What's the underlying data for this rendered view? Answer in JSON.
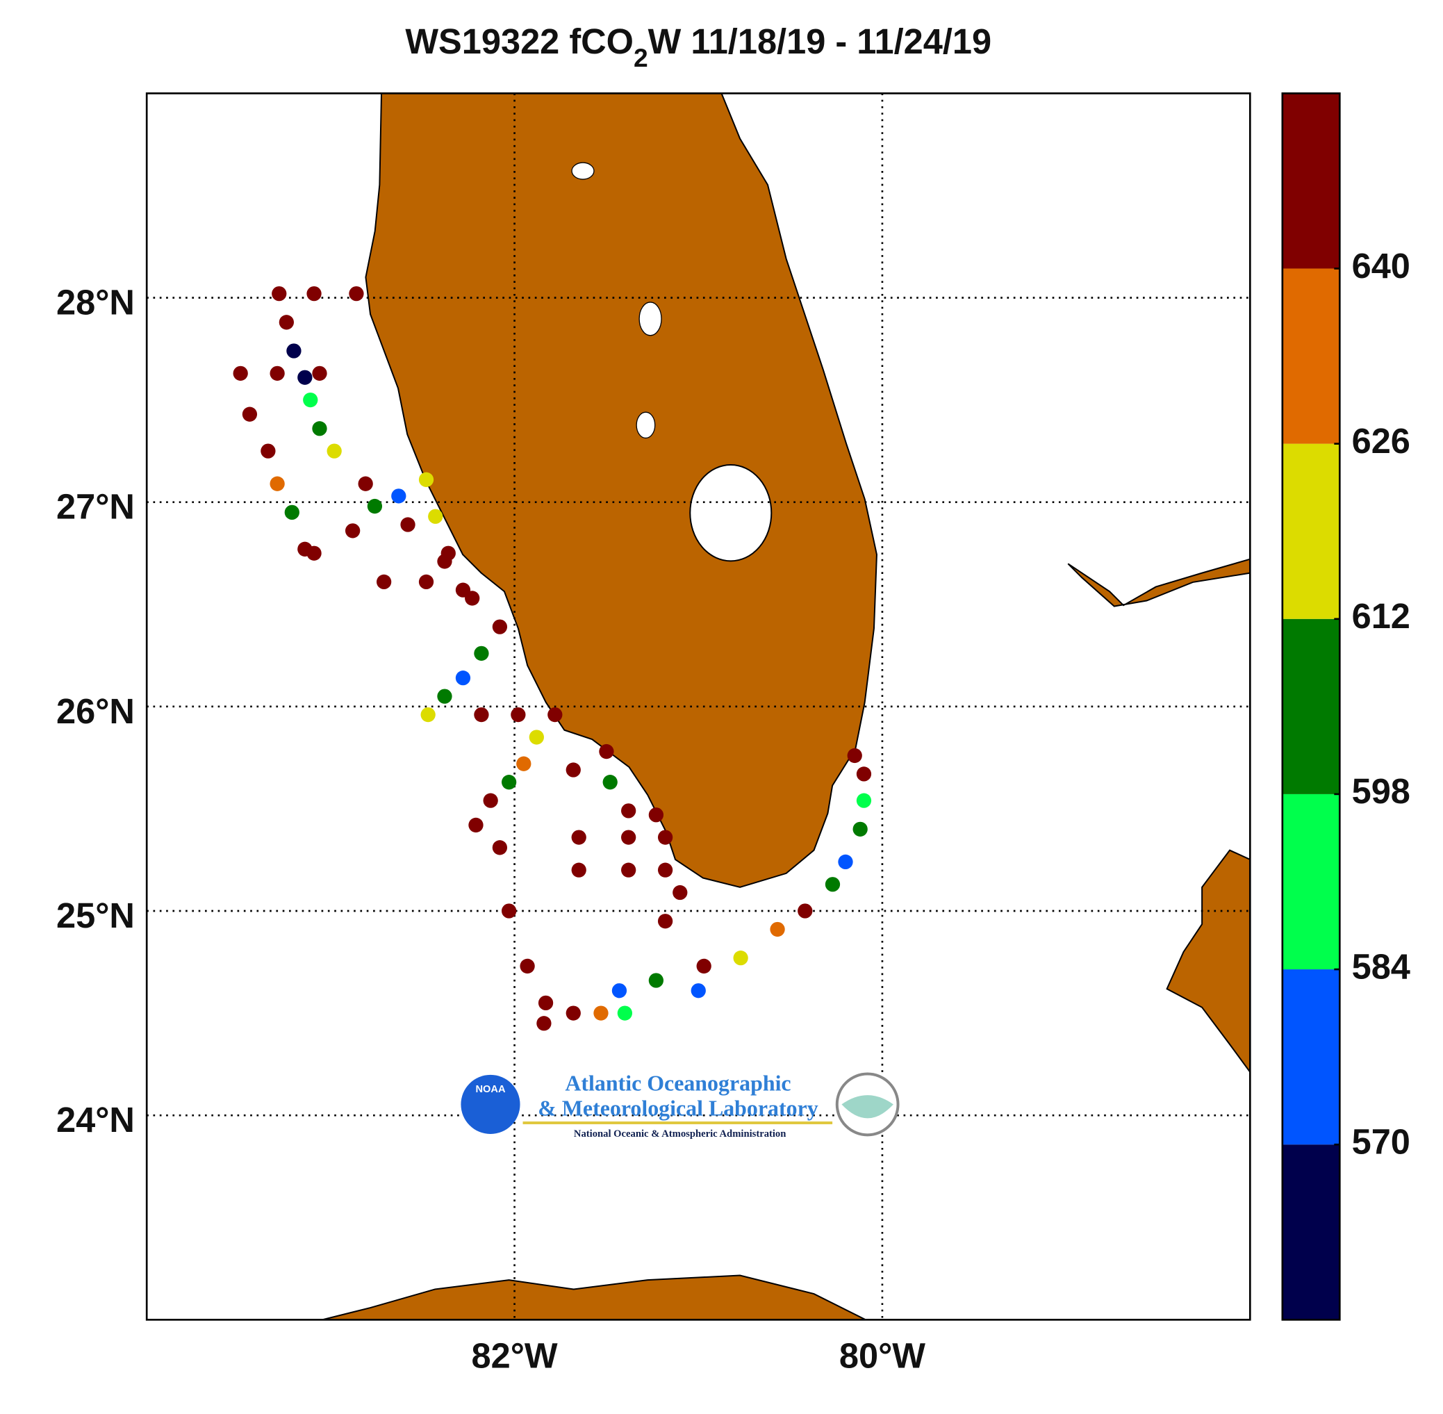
{
  "chart_data": {
    "type": "scatter",
    "title_parts": [
      "WS19322 fCO",
      "2",
      "W 11/18/19 - 11/24/19"
    ],
    "xlim": [
      -84,
      -78
    ],
    "ylim": [
      23,
      29
    ],
    "xticks": [
      {
        "value": -82,
        "label": "82°W"
      },
      {
        "value": -80,
        "label": "80°W"
      }
    ],
    "yticks": [
      {
        "value": 24,
        "label": "24°N"
      },
      {
        "value": 25,
        "label": "25°N"
      },
      {
        "value": 26,
        "label": "26°N"
      },
      {
        "value": 27,
        "label": "27°N"
      },
      {
        "value": 28,
        "label": "28°N"
      }
    ],
    "grid": true,
    "x": [
      -82.86,
      -83.09,
      -83.28,
      -83.24,
      -83.2,
      -83.14,
      -83.11,
      -83.06,
      -82.98,
      -82.81,
      -82.58,
      -82.38,
      -82.23,
      -82.08,
      -82.18,
      -82.28,
      -82.38,
      -82.47,
      -82.18,
      -81.98,
      -81.78,
      -81.88,
      -81.95,
      -82.03,
      -82.13,
      -82.21,
      -82.08,
      -82.03,
      -81.93,
      -81.83,
      -81.84,
      -81.68,
      -81.53,
      -81.4,
      -81.43,
      -81.23,
      -81.0,
      -80.97,
      -80.77,
      -80.57,
      -80.42,
      -80.27,
      -80.2,
      -80.12,
      -80.1,
      -80.1,
      -80.15,
      -81.18,
      -81.1,
      -81.18,
      -81.38,
      -81.65,
      -81.65,
      -81.38,
      -81.18,
      -83.06,
      -83.29,
      -83.49,
      -83.44,
      -83.34,
      -83.29,
      -83.21,
      -83.14,
      -83.09,
      -82.88,
      -82.76,
      -82.63,
      -82.48,
      -82.43,
      -82.36,
      -82.71,
      -82.48,
      -82.28,
      -81.68,
      -81.5,
      -81.48,
      -81.38,
      -81.23
    ],
    "y": [
      28.02,
      28.02,
      28.02,
      27.88,
      27.74,
      27.61,
      27.5,
      27.36,
      27.25,
      27.09,
      26.89,
      26.71,
      26.53,
      26.39,
      26.26,
      26.14,
      26.05,
      25.96,
      25.96,
      25.96,
      25.96,
      25.85,
      25.72,
      25.63,
      25.54,
      25.42,
      25.31,
      25.0,
      24.73,
      24.55,
      24.45,
      24.5,
      24.5,
      24.5,
      24.61,
      24.66,
      24.61,
      24.73,
      24.77,
      24.91,
      25.0,
      25.13,
      25.24,
      25.4,
      25.54,
      25.67,
      25.76,
      24.95,
      25.09,
      25.2,
      25.2,
      25.2,
      25.36,
      25.36,
      25.36,
      27.63,
      27.63,
      27.63,
      27.43,
      27.25,
      27.09,
      26.95,
      26.77,
      26.75,
      26.86,
      26.98,
      27.03,
      27.11,
      26.93,
      26.75,
      26.61,
      26.61,
      26.57,
      25.69,
      25.78,
      25.63,
      25.49,
      25.47
    ],
    "values": [
      650,
      650,
      650,
      640,
      560,
      560,
      590,
      605,
      620,
      650,
      650,
      650,
      650,
      650,
      605,
      580,
      605,
      620,
      650,
      650,
      650,
      615,
      630,
      600,
      650,
      650,
      650,
      650,
      650,
      640,
      650,
      650,
      635,
      590,
      575,
      600,
      570,
      640,
      620,
      630,
      650,
      600,
      575,
      600,
      595,
      650,
      650,
      650,
      650,
      650,
      650,
      650,
      650,
      650,
      650,
      650,
      650,
      650,
      650,
      645,
      635,
      605,
      650,
      650,
      640,
      605,
      575,
      620,
      615,
      645,
      650,
      650,
      650,
      650,
      650,
      600,
      650,
      650
    ],
    "colorbar": {
      "clim": [
        556,
        654
      ],
      "ticks": [
        570,
        584,
        598,
        612,
        626,
        640
      ],
      "colors": [
        "#00004c",
        "#0055ff",
        "#00ff4c",
        "#007a00",
        "#dcdc00",
        "#e06a00",
        "#800000"
      ]
    },
    "land_color": "#bb6400",
    "logo": {
      "line1": "Atlantic Oceanographic",
      "line2": "& Meteorological Laboratory",
      "line3": "National Oceanic & Atmospheric Administration",
      "badge": "NOAA"
    }
  }
}
